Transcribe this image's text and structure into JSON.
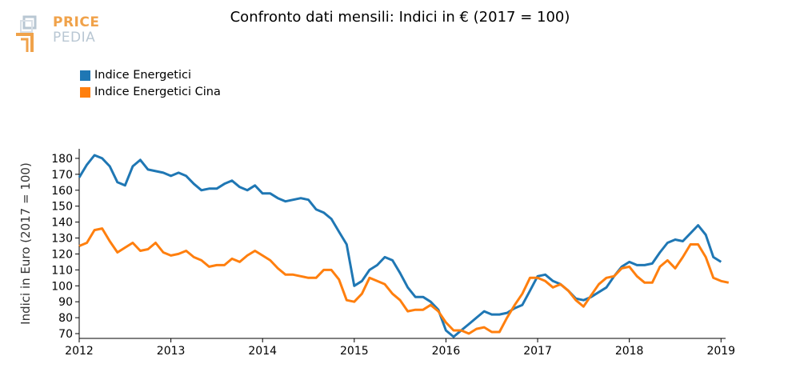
{
  "header": {
    "title": "Confronto dati mensili: Indici in € (2017 = 100)"
  },
  "logo": {
    "line1": "PRICE",
    "line2": "PEDIA",
    "colors": {
      "orange": "#f0a24a",
      "gray": "#b9c7d3"
    }
  },
  "chart_data": {
    "type": "line",
    "title": "Confronto dati mensili: Indici in € (2017 = 100)",
    "xlabel": "",
    "ylabel": "Indici in Euro (2017 = 100)",
    "xlim": [
      2012.0,
      2019.05
    ],
    "ylim": [
      67,
      186
    ],
    "yticks": [
      70,
      80,
      90,
      100,
      110,
      120,
      130,
      140,
      150,
      160,
      170,
      180
    ],
    "xticks": [
      "2012",
      "2013",
      "2014",
      "2015",
      "2016",
      "2017",
      "2018",
      "2019"
    ],
    "grid": false,
    "legend_position": "top-left",
    "start": "2012-01",
    "frequency": "monthly",
    "series": [
      {
        "name": "Indice Energetici",
        "color": "#1f77b4",
        "values": [
          168,
          176,
          182,
          180,
          175,
          165,
          163,
          175,
          179,
          173,
          172,
          171,
          169,
          171,
          169,
          164,
          160,
          161,
          161,
          164,
          166,
          162,
          160,
          163,
          158,
          158,
          155,
          153,
          154,
          155,
          154,
          148,
          146,
          142,
          134,
          126,
          100,
          103,
          110,
          113,
          118,
          116,
          108,
          99,
          93,
          93,
          90,
          85,
          72,
          68,
          72,
          76,
          80,
          84,
          82,
          82,
          83,
          86,
          88,
          97,
          106,
          107,
          103,
          101,
          97,
          92,
          91,
          93,
          96,
          99,
          106,
          112,
          115,
          113,
          113,
          114,
          121,
          127,
          129,
          128,
          133,
          138,
          132,
          118,
          115
        ]
      },
      {
        "name": "Indice Energetici Cina",
        "color": "#ff7f0e",
        "values": [
          125,
          127,
          135,
          136,
          128,
          121,
          124,
          127,
          122,
          123,
          127,
          121,
          119,
          120,
          122,
          118,
          116,
          112,
          113,
          113,
          117,
          115,
          119,
          122,
          119,
          116,
          111,
          107,
          107,
          106,
          105,
          105,
          110,
          110,
          104,
          91,
          90,
          95,
          105,
          103,
          101,
          95,
          91,
          84,
          85,
          85,
          88,
          84,
          77,
          72,
          72,
          70,
          73,
          74,
          71,
          71,
          80,
          88,
          95,
          105,
          105,
          103,
          99,
          101,
          97,
          91,
          87,
          94,
          101,
          105,
          106,
          111,
          112,
          106,
          102,
          102,
          112,
          116,
          111,
          118,
          126,
          126,
          118,
          105,
          103,
          102
        ]
      }
    ]
  }
}
